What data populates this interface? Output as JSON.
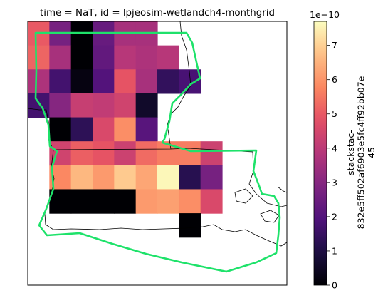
{
  "chart_data": {
    "type": "heatmap",
    "title": "time = NaT, id = lpjeosim-wetlandch4-monthgrid",
    "colormap": "magma",
    "vmin": 0,
    "vmax": 7.7,
    "colorbar": {
      "ticks": [
        "0",
        "1",
        "2",
        "3",
        "4",
        "5",
        "6",
        "7"
      ],
      "tick_values": [
        0,
        1,
        2,
        3,
        4,
        5,
        6,
        7
      ],
      "exponent_label": "1e−10",
      "label_lines": [
        "stackstac-",
        "832e5ff502af6903e5fc4ff92bb07e",
        "45"
      ]
    },
    "grid": {
      "rows": 11,
      "cols": 12,
      "values": [
        [
          5.0,
          2.7,
          0.0,
          2.4,
          3.6,
          3.6,
          null,
          null,
          null,
          null,
          null,
          null
        ],
        [
          5.2,
          3.6,
          0.0,
          2.3,
          3.9,
          3.7,
          3.9,
          null,
          null,
          null,
          null,
          null
        ],
        [
          3.7,
          1.7,
          0.2,
          2.0,
          4.9,
          3.6,
          1.4,
          1.8,
          null,
          null,
          null,
          null
        ],
        [
          1.7,
          3.0,
          4.2,
          4.1,
          4.4,
          0.6,
          null,
          null,
          null,
          null,
          null,
          null
        ],
        [
          null,
          0.0,
          1.3,
          4.6,
          5.9,
          2.1,
          null,
          null,
          null,
          null,
          null,
          null
        ],
        [
          null,
          4.4,
          5.1,
          4.9,
          4.3,
          5.3,
          5.6,
          5.6,
          4.3,
          null,
          null,
          null
        ],
        [
          null,
          5.8,
          6.6,
          6.1,
          6.9,
          6.3,
          7.6,
          1.2,
          2.7,
          null,
          null,
          null
        ],
        [
          null,
          0.0,
          0.0,
          0.0,
          0.0,
          6.1,
          6.2,
          5.9,
          4.6,
          null,
          null,
          null
        ],
        [
          null,
          null,
          null,
          null,
          null,
          null,
          null,
          0.0,
          null,
          null,
          null,
          null
        ],
        [
          null,
          null,
          null,
          null,
          null,
          null,
          null,
          null,
          null,
          null,
          null,
          null
        ],
        [
          null,
          null,
          null,
          null,
          null,
          null,
          null,
          null,
          null,
          null,
          null,
          null
        ]
      ]
    },
    "outline_color": "#1ee26a"
  }
}
